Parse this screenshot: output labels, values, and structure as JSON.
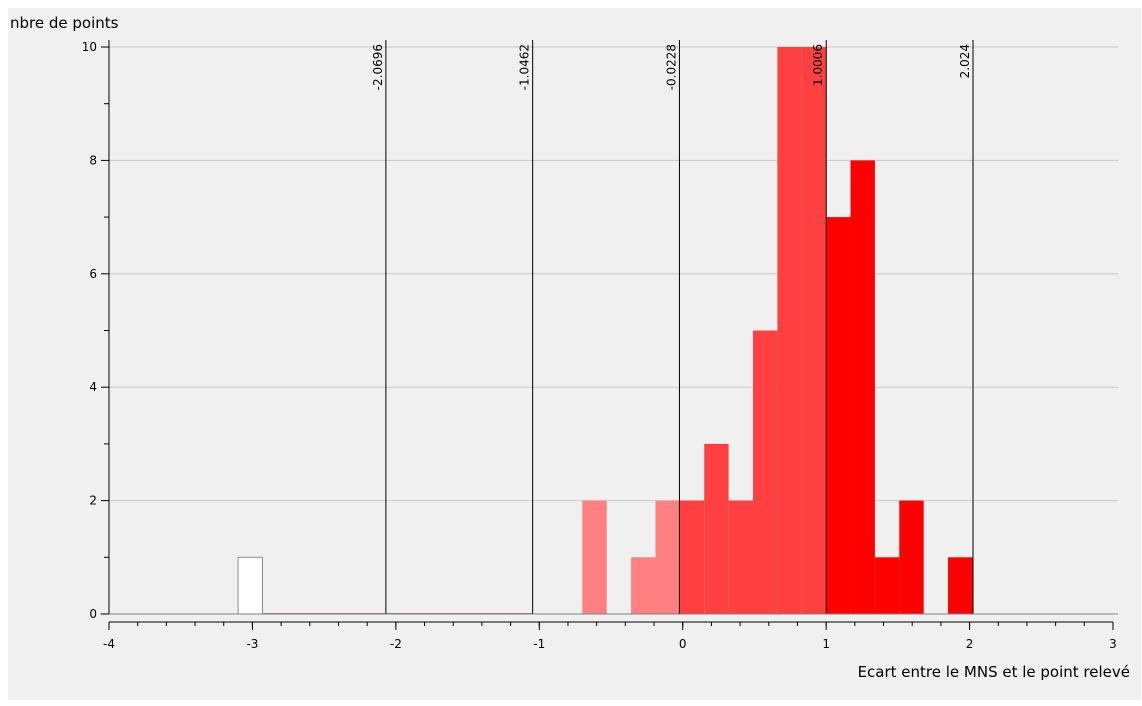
{
  "chart_data": {
    "type": "bar",
    "title": "",
    "xlabel": "Ecart entre le MNS et le point relevé",
    "ylabel": "nbre de points",
    "xlim": [
      -4,
      3
    ],
    "ylim": [
      0,
      10
    ],
    "xticks": [
      -4,
      -3,
      -2,
      -1,
      0,
      1,
      2,
      3
    ],
    "yticks": [
      0,
      2,
      4,
      6,
      8,
      10
    ],
    "grid": "horizontal",
    "legend": "none",
    "class_breaks": [
      {
        "value": -2.0696,
        "label": "-2.0696"
      },
      {
        "value": -1.0462,
        "label": "-1.0462"
      },
      {
        "value": -0.0228,
        "label": "-0.0228"
      },
      {
        "value": 1.0006,
        "label": "1.0006"
      },
      {
        "value": 2.024,
        "label": "2.024"
      }
    ],
    "bins": [
      {
        "x0": -3.1,
        "x1": -2.93,
        "count": 1,
        "color": "#ffffff"
      },
      {
        "x0": -2.93,
        "x1": -2.0696,
        "count": 0,
        "color": "#ffd8d8"
      },
      {
        "x0": -2.0696,
        "x1": -1.0462,
        "count": 0,
        "color": "#ffb0b0"
      },
      {
        "x0": -0.7,
        "x1": -0.53,
        "count": 2,
        "color": "#ff8080"
      },
      {
        "x0": -0.36,
        "x1": -0.19,
        "count": 1,
        "color": "#ff8080"
      },
      {
        "x0": -0.19,
        "x1": -0.0228,
        "count": 2,
        "color": "#ff8080"
      },
      {
        "x0": -0.0228,
        "x1": 0.15,
        "count": 2,
        "color": "#ff4040"
      },
      {
        "x0": 0.15,
        "x1": 0.32,
        "count": 3,
        "color": "#ff4040"
      },
      {
        "x0": 0.32,
        "x1": 0.49,
        "count": 2,
        "color": "#ff4040"
      },
      {
        "x0": 0.49,
        "x1": 0.66,
        "count": 5,
        "color": "#ff4040"
      },
      {
        "x0": 0.66,
        "x1": 0.83,
        "count": 10,
        "color": "#ff4040"
      },
      {
        "x0": 0.83,
        "x1": 1.0006,
        "count": 10,
        "color": "#ff4040"
      },
      {
        "x0": 1.0006,
        "x1": 1.17,
        "count": 7,
        "color": "#ff0000"
      },
      {
        "x0": 1.17,
        "x1": 1.34,
        "count": 8,
        "color": "#ff0000"
      },
      {
        "x0": 1.34,
        "x1": 1.51,
        "count": 1,
        "color": "#ff0000"
      },
      {
        "x0": 1.51,
        "x1": 1.68,
        "count": 2,
        "color": "#ff0000"
      },
      {
        "x0": 1.85,
        "x1": 2.024,
        "count": 1,
        "color": "#ff0000"
      }
    ]
  },
  "colors": {
    "plot_background": "#f0f0f0",
    "grid": "#c8c8c8",
    "axis": "#000000",
    "break_line": "#000000"
  }
}
